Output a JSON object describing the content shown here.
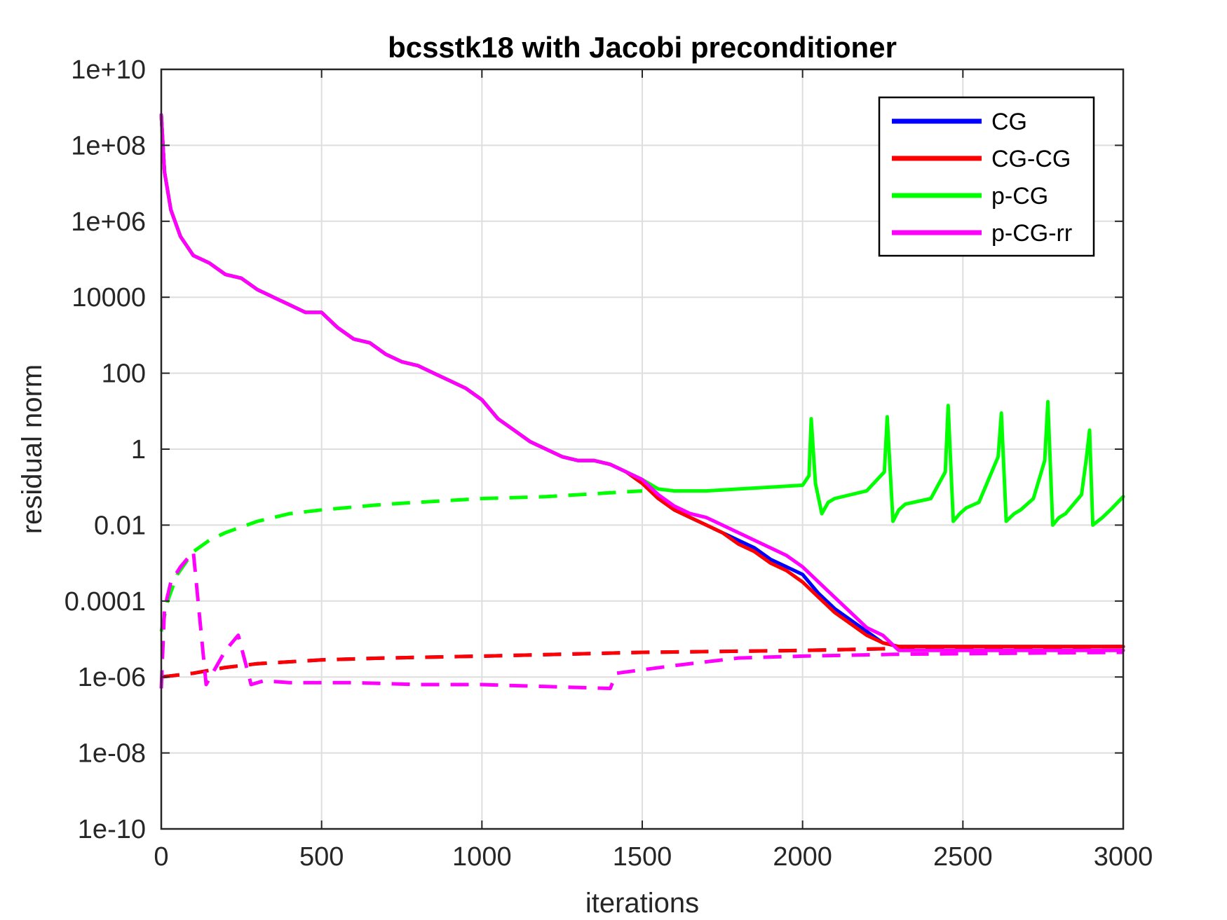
{
  "chart_data": {
    "type": "line",
    "title": "bcsstk18 with Jacobi preconditioner",
    "xlabel": "iterations",
    "ylabel": "residual norm",
    "xlim": [
      0,
      3000
    ],
    "ylim_log10": [
      -10,
      10
    ],
    "yscale": "log",
    "grid": true,
    "legend_position": "top-right",
    "x_ticks": [
      0,
      500,
      1000,
      1500,
      2000,
      2500,
      3000
    ],
    "x_tick_labels": [
      "0",
      "500",
      "1000",
      "1500",
      "2000",
      "2500",
      "3000"
    ],
    "y_ticks_log10": [
      -10,
      -8,
      -6,
      -4,
      -2,
      0,
      2,
      4,
      6,
      8,
      10
    ],
    "y_tick_labels": [
      "1e-10",
      "1e-08",
      "1e-06",
      "0.0001",
      "0.01",
      "1",
      "100",
      "10000",
      "1e+06",
      "1e+08",
      "1e+10"
    ],
    "legend": [
      "CG",
      "CG-CG",
      "p-CG",
      "p-CG-rr"
    ],
    "colors": {
      "CG": "#0000ff",
      "CG-CG": "#ff0000",
      "p-CG": "#00ff00",
      "p-CG-rr": "#ff00ff",
      "grid": "#dedede",
      "axes": "#262626"
    },
    "series": [
      {
        "name": "CG",
        "role": "residual",
        "x": [
          0,
          10,
          30,
          60,
          100,
          150,
          200,
          250,
          300,
          350,
          400,
          450,
          500,
          550,
          600,
          650,
          700,
          750,
          800,
          850,
          900,
          950,
          1000,
          1050,
          1100,
          1150,
          1200,
          1250,
          1300,
          1350,
          1400,
          1450,
          1500,
          1550,
          1600,
          1650,
          1700,
          1750,
          1800,
          1850,
          1900,
          1950,
          2000,
          2050,
          2100,
          2150,
          2200,
          2250,
          2300,
          2400,
          2600,
          2800,
          3000
        ],
        "log10_values": [
          8.8,
          7.3,
          6.3,
          5.6,
          5.1,
          4.9,
          4.6,
          4.5,
          4.2,
          4.0,
          3.8,
          3.6,
          3.6,
          3.2,
          2.9,
          2.8,
          2.5,
          2.3,
          2.2,
          2.0,
          1.8,
          1.6,
          1.3,
          0.8,
          0.5,
          0.2,
          0.0,
          -0.2,
          -0.3,
          -0.3,
          -0.4,
          -0.6,
          -0.9,
          -1.3,
          -1.6,
          -1.8,
          -2.0,
          -2.2,
          -2.4,
          -2.6,
          -2.9,
          -3.1,
          -3.3,
          -3.8,
          -4.2,
          -4.5,
          -4.8,
          -5.1,
          -5.2,
          -5.2,
          -5.2,
          -5.2,
          -5.2
        ]
      },
      {
        "name": "CG-CG",
        "role": "residual",
        "x": [
          0,
          10,
          30,
          60,
          100,
          150,
          200,
          250,
          300,
          350,
          400,
          450,
          500,
          550,
          600,
          650,
          700,
          750,
          800,
          850,
          900,
          950,
          1000,
          1050,
          1100,
          1150,
          1200,
          1250,
          1300,
          1350,
          1400,
          1450,
          1500,
          1550,
          1600,
          1650,
          1700,
          1750,
          1800,
          1850,
          1900,
          1950,
          2000,
          2050,
          2100,
          2150,
          2200,
          2250,
          2300,
          2400,
          2600,
          2800,
          3000
        ],
        "log10_values": [
          8.8,
          7.3,
          6.3,
          5.6,
          5.1,
          4.9,
          4.6,
          4.5,
          4.2,
          4.0,
          3.8,
          3.6,
          3.6,
          3.2,
          2.9,
          2.8,
          2.5,
          2.3,
          2.2,
          2.0,
          1.8,
          1.6,
          1.3,
          0.8,
          0.5,
          0.2,
          0.0,
          -0.2,
          -0.3,
          -0.3,
          -0.4,
          -0.6,
          -0.9,
          -1.3,
          -1.6,
          -1.8,
          -2.0,
          -2.2,
          -2.5,
          -2.7,
          -3.0,
          -3.2,
          -3.5,
          -3.9,
          -4.3,
          -4.6,
          -4.9,
          -5.1,
          -5.2,
          -5.2,
          -5.2,
          -5.2,
          -5.2
        ]
      },
      {
        "name": "p-CG",
        "role": "residual",
        "x": [
          0,
          10,
          30,
          60,
          100,
          150,
          200,
          250,
          300,
          350,
          400,
          450,
          500,
          550,
          600,
          650,
          700,
          750,
          800,
          850,
          900,
          950,
          1000,
          1050,
          1100,
          1150,
          1200,
          1250,
          1300,
          1350,
          1400,
          1450,
          1500,
          1550,
          1600,
          1700,
          1800,
          1900,
          2000,
          2020,
          2027,
          2040,
          2060,
          2080,
          2100,
          2150,
          2200,
          2255,
          2264,
          2282,
          2300,
          2320,
          2400,
          2445,
          2454,
          2470,
          2490,
          2510,
          2550,
          2610,
          2620,
          2635,
          2660,
          2680,
          2720,
          2755,
          2765,
          2780,
          2800,
          2820,
          2870,
          2885,
          2895,
          2905,
          2935,
          2960,
          3000
        ],
        "log10_values": [
          8.8,
          7.3,
          6.3,
          5.6,
          5.1,
          4.9,
          4.6,
          4.5,
          4.2,
          4.0,
          3.8,
          3.6,
          3.6,
          3.2,
          2.9,
          2.8,
          2.5,
          2.3,
          2.2,
          2.0,
          1.8,
          1.6,
          1.3,
          0.8,
          0.5,
          0.2,
          0.0,
          -0.2,
          -0.3,
          -0.3,
          -0.4,
          -0.6,
          -0.8,
          -1.05,
          -1.1,
          -1.1,
          -1.05,
          -1.0,
          -0.95,
          -0.7,
          0.8,
          -0.9,
          -1.7,
          -1.4,
          -1.3,
          -1.2,
          -1.1,
          -0.6,
          0.85,
          -1.9,
          -1.6,
          -1.45,
          -1.3,
          -0.6,
          1.15,
          -1.9,
          -1.7,
          -1.55,
          -1.4,
          -0.2,
          0.95,
          -1.9,
          -1.7,
          -1.6,
          -1.3,
          -0.3,
          1.25,
          -2.0,
          -1.8,
          -1.7,
          -1.2,
          -0.25,
          0.5,
          -2.0,
          -1.8,
          -1.6,
          -1.25
        ]
      },
      {
        "name": "p-CG-rr",
        "role": "residual",
        "x": [
          0,
          10,
          30,
          60,
          100,
          150,
          200,
          250,
          300,
          350,
          400,
          450,
          500,
          550,
          600,
          650,
          700,
          750,
          800,
          850,
          900,
          950,
          1000,
          1050,
          1100,
          1150,
          1200,
          1250,
          1300,
          1350,
          1400,
          1450,
          1500,
          1550,
          1600,
          1650,
          1700,
          1750,
          1800,
          1850,
          1900,
          1950,
          2000,
          2050,
          2100,
          2150,
          2200,
          2250,
          2300,
          2400,
          2600,
          2800,
          3000
        ],
        "log10_values": [
          8.8,
          7.3,
          6.3,
          5.6,
          5.1,
          4.9,
          4.6,
          4.5,
          4.2,
          4.0,
          3.8,
          3.6,
          3.6,
          3.2,
          2.9,
          2.8,
          2.5,
          2.3,
          2.2,
          2.0,
          1.8,
          1.6,
          1.3,
          0.8,
          0.5,
          0.2,
          0.0,
          -0.2,
          -0.3,
          -0.3,
          -0.4,
          -0.6,
          -0.8,
          -1.2,
          -1.5,
          -1.7,
          -1.8,
          -2.0,
          -2.2,
          -2.4,
          -2.6,
          -2.8,
          -3.1,
          -3.5,
          -3.9,
          -4.3,
          -4.7,
          -4.9,
          -5.3,
          -5.3,
          -5.3,
          -5.3,
          -5.3
        ]
      },
      {
        "name": "CG",
        "role": "gap (dashed)",
        "x": [
          0,
          100,
          200,
          300,
          500,
          700,
          1000,
          1500,
          2000,
          2300,
          3000
        ],
        "log10_values": [
          -6.0,
          -5.9,
          -5.75,
          -5.65,
          -5.55,
          -5.5,
          -5.45,
          -5.35,
          -5.3,
          -5.25,
          -5.2
        ]
      },
      {
        "name": "CG-CG",
        "role": "gap (dashed)",
        "x": [
          0,
          100,
          200,
          300,
          500,
          700,
          1000,
          1500,
          2000,
          2300,
          3000
        ],
        "log10_values": [
          -6.0,
          -5.9,
          -5.75,
          -5.65,
          -5.55,
          -5.5,
          -5.45,
          -5.35,
          -5.3,
          -5.25,
          -5.2
        ]
      },
      {
        "name": "p-CG",
        "role": "gap (dashed)",
        "x": [
          0,
          20,
          50,
          100,
          150,
          200,
          300,
          400,
          500,
          700,
          1000,
          1200,
          1400,
          1500
        ],
        "log10_values": [
          -4.8,
          -4.0,
          -3.3,
          -2.7,
          -2.4,
          -2.2,
          -1.9,
          -1.7,
          -1.6,
          -1.45,
          -1.3,
          -1.25,
          -1.15,
          -1.1
        ]
      },
      {
        "name": "p-CG-rr",
        "role": "gap (dashed)",
        "x": [
          0,
          10,
          30,
          60,
          100,
          140,
          200,
          240,
          280,
          320,
          400,
          600,
          800,
          1000,
          1200,
          1400,
          1420,
          1600,
          1800,
          2000,
          2300,
          3000
        ],
        "log10_values": [
          -6.3,
          -4.2,
          -3.5,
          -3.1,
          -2.7,
          -6.2,
          -5.3,
          -4.9,
          -6.2,
          -6.1,
          -6.15,
          -6.15,
          -6.2,
          -6.2,
          -6.25,
          -6.3,
          -5.9,
          -5.7,
          -5.5,
          -5.45,
          -5.4,
          -5.35
        ]
      }
    ]
  }
}
